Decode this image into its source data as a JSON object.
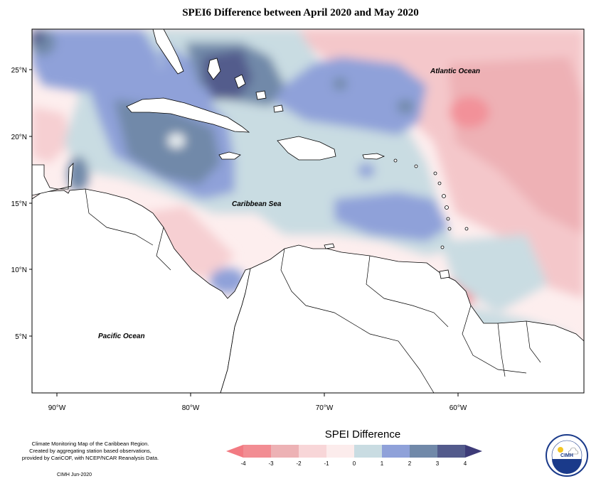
{
  "title": "SPEI6 Difference between April 2020 and May 2020",
  "map": {
    "labels": {
      "atlantic": "Atlantic Ocean",
      "caribbean": "Caribbean Sea",
      "pacific": "Pacific Ocean"
    },
    "lat_ticks": [
      "25°N",
      "20°N",
      "15°N",
      "10°N",
      "5°N"
    ],
    "lon_ticks": [
      "90°W",
      "80°W",
      "70°W",
      "60°W"
    ],
    "extent": {
      "lon": [
        -92,
        -51
      ],
      "lat": [
        1,
        28
      ]
    }
  },
  "legend": {
    "title": "SPEI Difference",
    "ticks": [
      "-4",
      "-3",
      "-2",
      "-1",
      "0",
      "1",
      "2",
      "3",
      "4"
    ],
    "colors": [
      "#f28d93",
      "#edb2b5",
      "#f8d6d8",
      "#fcecec",
      "#c9dce2",
      "#8fa1d9",
      "#7189a9",
      "#535b8c"
    ],
    "arrow_low": "#f27a82",
    "arrow_high": "#3d3b78"
  },
  "footer": {
    "description_lines": [
      "Climate Monitoring Map of the Caribbean Region.",
      "Created by aggregating station based observations,",
      "provided by CariCOF, with NCEP/NCAR Reanalysis Data."
    ],
    "credit": "CIMH  Jun-2020"
  },
  "logo": {
    "text": "CIMH",
    "icon": "cimh-logo-sun-cloud-icon"
  }
}
